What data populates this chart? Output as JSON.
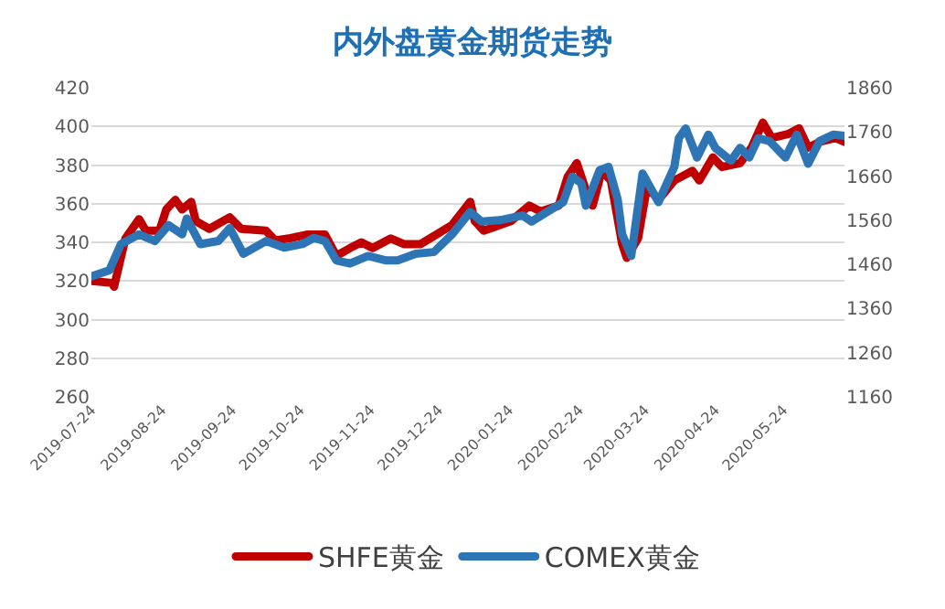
{
  "chart_data": {
    "type": "line",
    "title": "内外盘黄金期货走势",
    "xlim": [
      "2019-07-24",
      "2020-06-20"
    ],
    "xticks": [
      "2019-07-24",
      "2019-08-24",
      "2019-09-24",
      "2019-10-24",
      "2019-11-24",
      "2019-12-24",
      "2020-01-24",
      "2020-02-24",
      "2020-03-24",
      "2020-04-24",
      "2020-05-24"
    ],
    "ylim": [
      260,
      420
    ],
    "yticks": [
      260,
      280,
      300,
      320,
      340,
      360,
      380,
      400,
      420
    ],
    "y2lim": [
      1160,
      1860
    ],
    "y2ticks": [
      1160,
      1260,
      1360,
      1460,
      1560,
      1660,
      1760,
      1860
    ],
    "grid": "y",
    "legend": "bottom",
    "line_style": "solid",
    "series": [
      {
        "name": "SHFE黄金",
        "color": "#c00000",
        "x": [
          "2019-07-24",
          "2019-08-02",
          "2019-08-03",
          "2019-08-08",
          "2019-08-14",
          "2019-08-17",
          "2019-08-23",
          "2019-08-26",
          "2019-08-30",
          "2019-09-02",
          "2019-09-06",
          "2019-09-08",
          "2019-09-14",
          "2019-09-23",
          "2019-09-28",
          "2019-10-09",
          "2019-10-13",
          "2019-10-19",
          "2019-10-27",
          "2019-11-04",
          "2019-11-09",
          "2019-11-15",
          "2019-11-20",
          "2019-11-25",
          "2019-12-03",
          "2019-12-09",
          "2019-12-16",
          "2019-12-23",
          "2019-12-30",
          "2020-01-07",
          "2020-01-09",
          "2020-01-13",
          "2020-01-25",
          "2020-02-02",
          "2020-02-07",
          "2020-02-15",
          "2020-02-19",
          "2020-02-23",
          "2020-02-27",
          "2020-03-01",
          "2020-03-05",
          "2020-03-09",
          "2020-03-14",
          "2020-03-16",
          "2020-03-21",
          "2020-03-25",
          "2020-03-30",
          "2020-04-06",
          "2020-04-14",
          "2020-04-17",
          "2020-04-23",
          "2020-04-27",
          "2020-05-05",
          "2020-05-10",
          "2020-05-15",
          "2020-05-19",
          "2020-05-26",
          "2020-05-31",
          "2020-06-04",
          "2020-06-09",
          "2020-06-16",
          "2020-06-20"
        ],
        "values": [
          320,
          319,
          317,
          342,
          352,
          346,
          346,
          357,
          362,
          357,
          361,
          351,
          347,
          353,
          347,
          346,
          341,
          342,
          344,
          344,
          333,
          337,
          340,
          337,
          342,
          339,
          339,
          344,
          349,
          361,
          351,
          346,
          351,
          359,
          356,
          359,
          374,
          381,
          367,
          359,
          377,
          372,
          339,
          332,
          342,
          369,
          362,
          372,
          377,
          372,
          384,
          379,
          381,
          389,
          402,
          394,
          396,
          399,
          389,
          392,
          394,
          392
        ]
      },
      {
        "name": "COMEX黄金",
        "color": "#2e75b6",
        "axis": "y2",
        "x": [
          "2019-07-24",
          "2019-08-01",
          "2019-08-06",
          "2019-08-14",
          "2019-08-21",
          "2019-08-27",
          "2019-09-02",
          "2019-09-04",
          "2019-09-10",
          "2019-09-18",
          "2019-09-23",
          "2019-09-29",
          "2019-10-09",
          "2019-10-17",
          "2019-10-25",
          "2019-10-30",
          "2019-11-04",
          "2019-11-09",
          "2019-11-15",
          "2019-11-23",
          "2019-12-01",
          "2019-12-06",
          "2019-12-14",
          "2019-12-22",
          "2019-12-30",
          "2020-01-07",
          "2020-01-12",
          "2020-01-20",
          "2020-01-30",
          "2020-02-03",
          "2020-02-10",
          "2020-02-17",
          "2020-02-21",
          "2020-02-25",
          "2020-02-27",
          "2020-03-04",
          "2020-03-08",
          "2020-03-12",
          "2020-03-14",
          "2020-03-18",
          "2020-03-23",
          "2020-03-30",
          "2020-04-06",
          "2020-04-08",
          "2020-04-11",
          "2020-04-16",
          "2020-04-21",
          "2020-04-24",
          "2020-05-01",
          "2020-05-05",
          "2020-05-09",
          "2020-05-13",
          "2020-05-18",
          "2020-05-25",
          "2020-05-30",
          "2020-06-04",
          "2020-06-09",
          "2020-06-15",
          "2020-06-20"
        ],
        "values": [
          1433,
          1447,
          1506,
          1528,
          1513,
          1549,
          1528,
          1564,
          1506,
          1513,
          1542,
          1484,
          1513,
          1498,
          1506,
          1520,
          1513,
          1469,
          1462,
          1479,
          1469,
          1469,
          1484,
          1488,
          1528,
          1579,
          1557,
          1560,
          1571,
          1557,
          1579,
          1601,
          1659,
          1644,
          1593,
          1673,
          1681,
          1608,
          1528,
          1479,
          1666,
          1601,
          1681,
          1746,
          1768,
          1702,
          1754,
          1724,
          1695,
          1724,
          1702,
          1746,
          1739,
          1702,
          1754,
          1688,
          1739,
          1754,
          1751
        ]
      }
    ]
  }
}
